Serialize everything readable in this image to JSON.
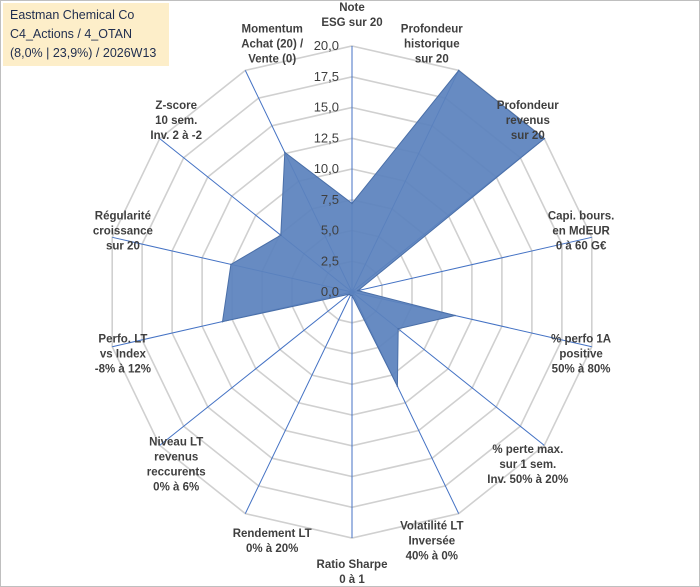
{
  "title": {
    "line1": "Eastman Chemical Co",
    "line2": "C4_Actions / 4_OTAN",
    "line3": "(8,0% | 23,9%) / 2026W13"
  },
  "colors": {
    "fill": "#5b82bd",
    "stroke": "#4a6fa8",
    "grid": "#d0d0d0",
    "axis": "#4472c4",
    "title_bg": "#fdeec9"
  },
  "chart_data": {
    "type": "radar",
    "rmin": 0,
    "rmax": 20,
    "ticks": [
      "0,0",
      "2,5",
      "5,0",
      "7,5",
      "10,0",
      "12,5",
      "15,0",
      "17,5",
      "20,0"
    ],
    "axes": [
      {
        "label": [
          "Note",
          "ESG sur 20"
        ],
        "value": 7.2
      },
      {
        "label": [
          "Profondeur",
          "historique",
          "sur 20"
        ],
        "value": 20
      },
      {
        "label": [
          "Profondeur",
          "revenus",
          "sur 20"
        ],
        "value": 20
      },
      {
        "label": [
          "Capi. bours.",
          "en MdEUR",
          "0 à 60 G€"
        ],
        "value": 0.5
      },
      {
        "label": [
          "% perfo 1A",
          "positive",
          "50% à 80%"
        ],
        "value": 8.6
      },
      {
        "label": [
          "% perte max.",
          "sur 1 sem.",
          "Inv. 50% à 20%"
        ],
        "value": 4.8
      },
      {
        "label": [
          "Volatilité LT",
          "Inversée",
          "40% à 0%"
        ],
        "value": 8.5
      },
      {
        "label": [
          "Ratio Sharpe",
          "0 à 1"
        ],
        "value": 0.3
      },
      {
        "label": [
          "Rendement LT",
          "0% à 20%"
        ],
        "value": 0.3
      },
      {
        "label": [
          "Niveau LT",
          "revenus",
          "reccurents",
          "0% à 6%"
        ],
        "value": 0.3
      },
      {
        "label": [
          "Perfo. LT",
          "vs Index",
          "-8% à 12%"
        ],
        "value": 10.8
      },
      {
        "label": [
          "Régularité",
          "croissance",
          "sur 20"
        ],
        "value": 10.1
      },
      {
        "label": [
          "Z-score",
          "10 sem.",
          "Inv. 2 à -2"
        ],
        "value": 7.4
      },
      {
        "label": [
          "Momentum",
          "Achat (20) /",
          "Vente (0)"
        ],
        "value": 12.6
      }
    ]
  }
}
